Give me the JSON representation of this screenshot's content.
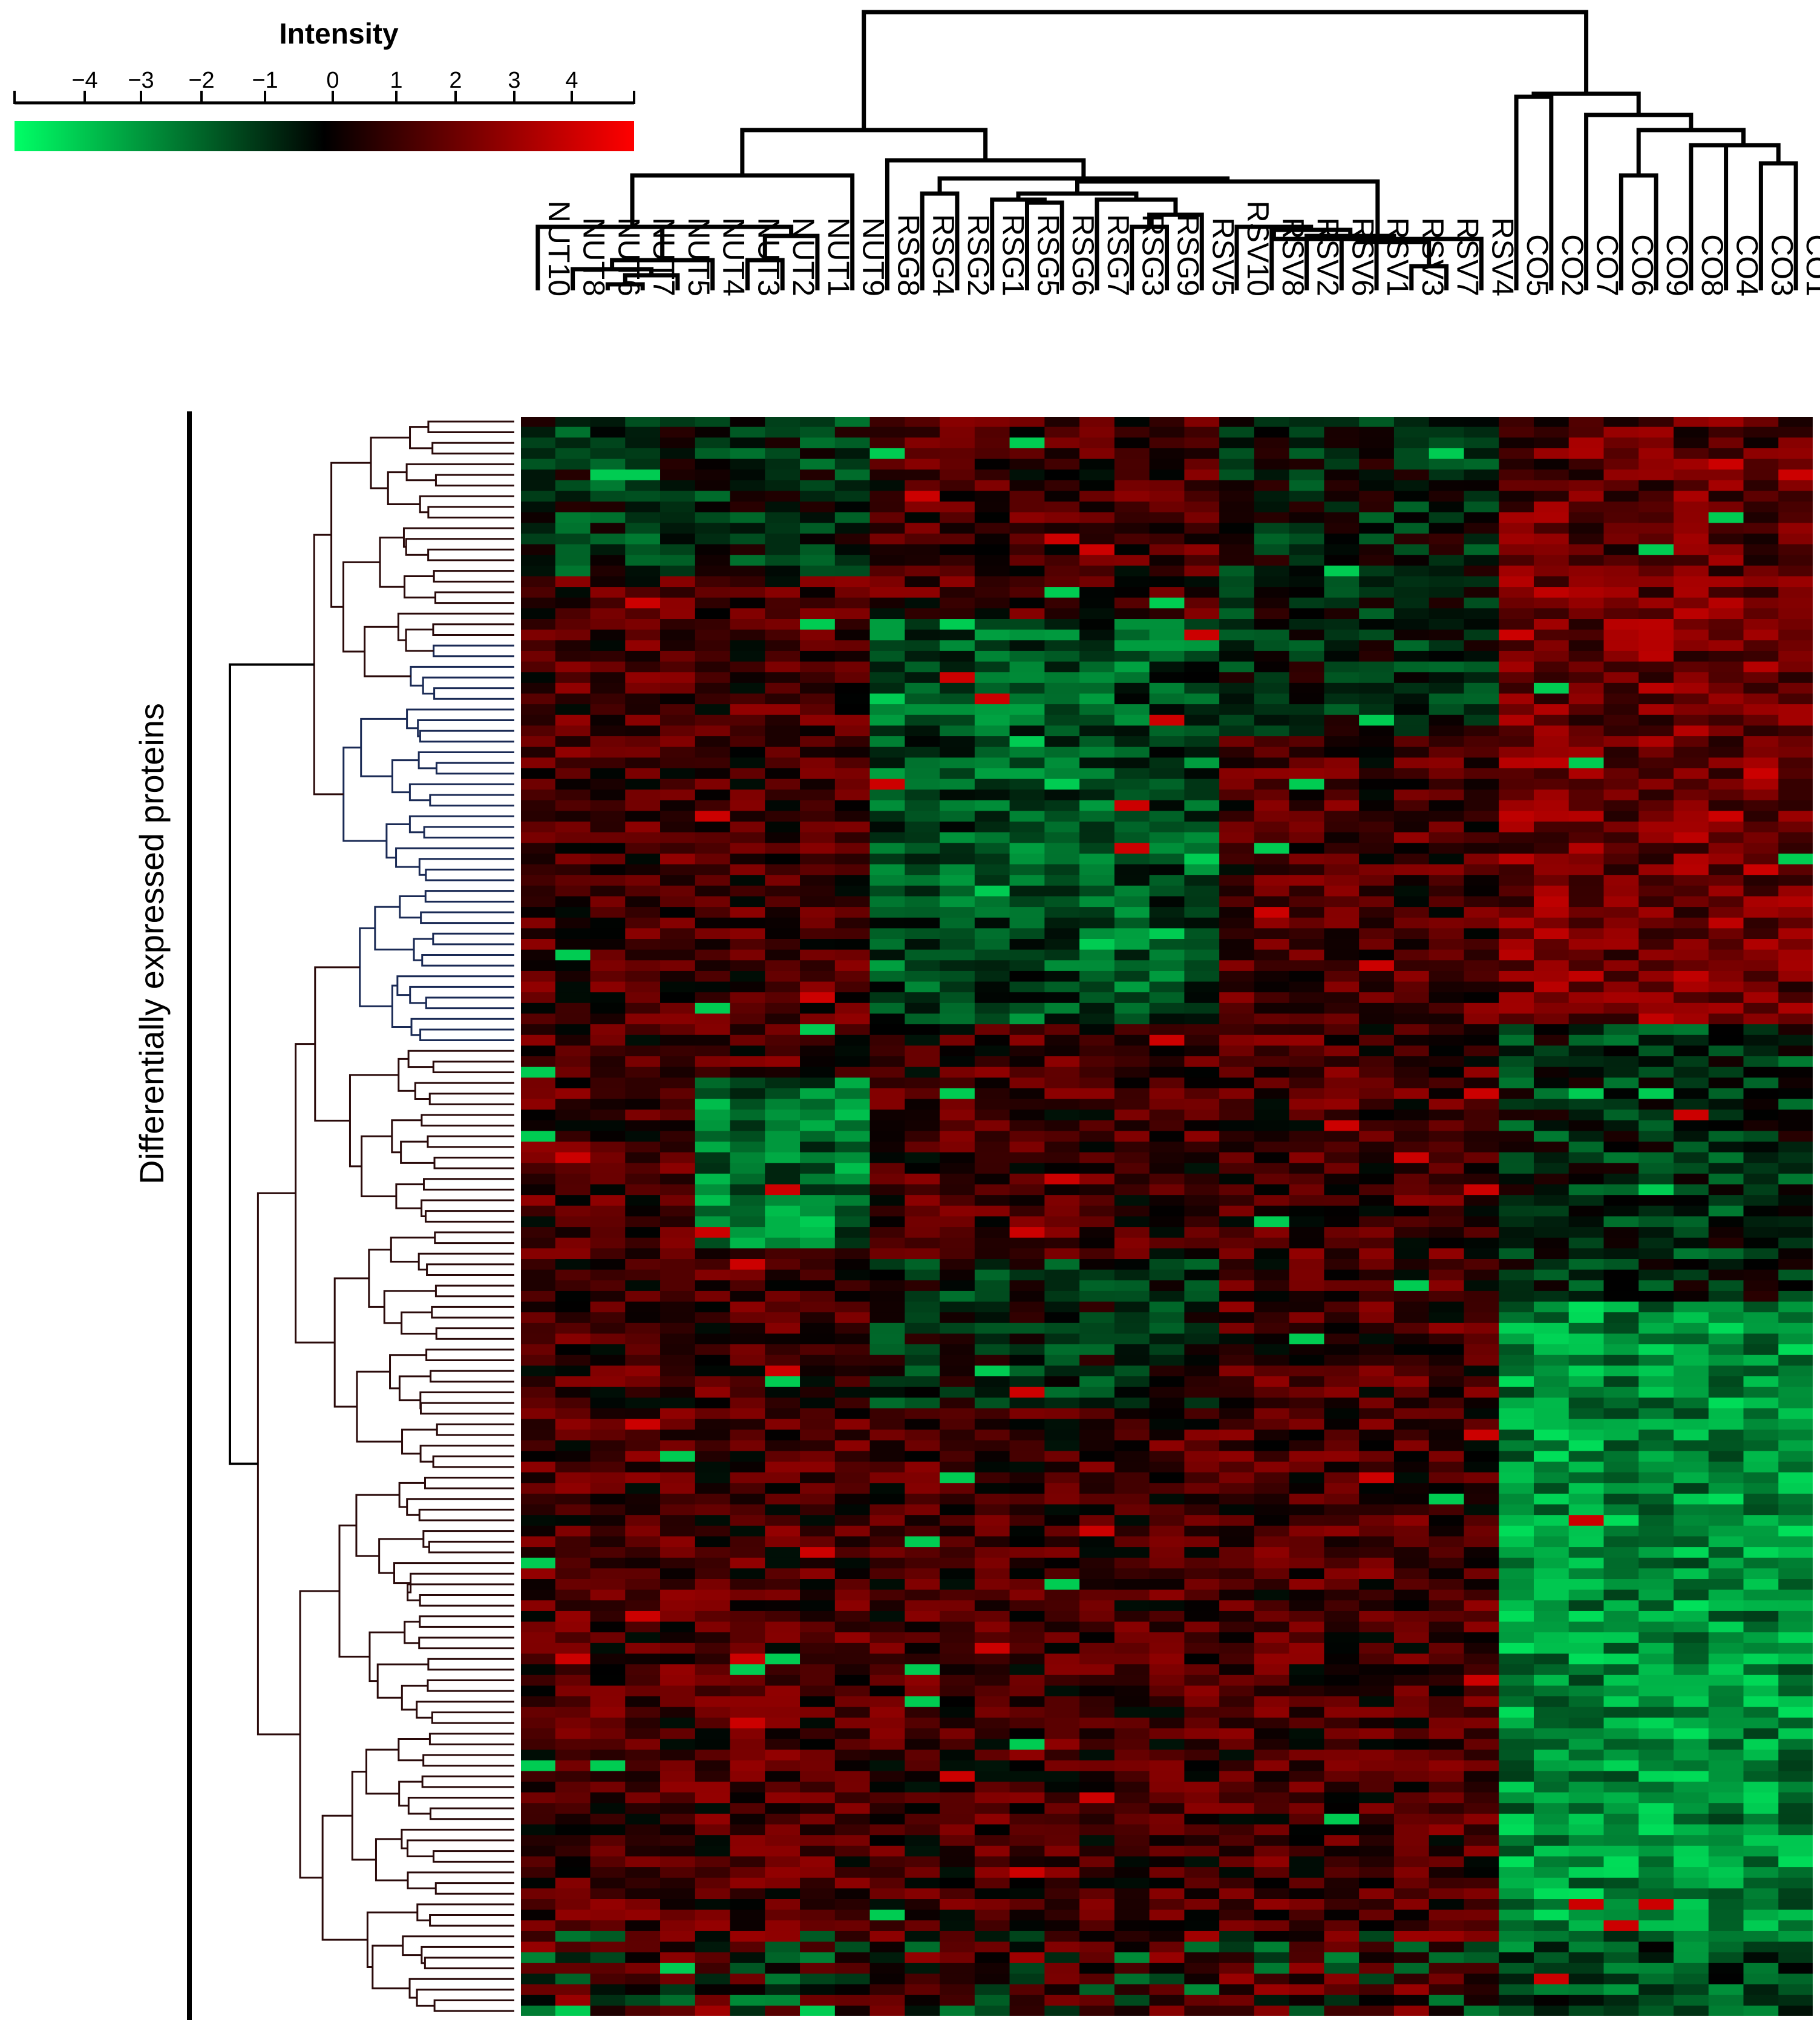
{
  "chart_data": {
    "type": "heatmap",
    "title": "",
    "ylabel": "Differentially expressed proteins",
    "colorbar": {
      "label": "Intensity",
      "ticks": [
        "−4",
        "−3",
        "−2",
        "−1",
        "0",
        "1",
        "2",
        "3",
        "4"
      ],
      "range": [
        -5,
        5
      ],
      "colors": {
        "low": "#00ff66",
        "mid": "#000000",
        "high": "#ff0000"
      }
    },
    "columns": [
      "NUT10",
      "NUT8",
      "NUT6",
      "NUT7",
      "NUT5",
      "NUT4",
      "NUT3",
      "NUT2",
      "NUT1",
      "NUT9",
      "RSG8",
      "RSG4",
      "RSG2",
      "RSG1",
      "RSG5",
      "RSG6",
      "RSG7",
      "RSG3",
      "RSG9",
      "RSV5",
      "RSV10",
      "RSV8",
      "RSV2",
      "RSV6",
      "RSV1",
      "RSV3",
      "RSV7",
      "RSV4",
      "CO5",
      "CO2",
      "CO7",
      "CO6",
      "CO9",
      "CO8",
      "CO4",
      "CO3",
      "CO1"
    ],
    "row_count": 150,
    "dendrograms": {
      "columns": true,
      "rows": true
    },
    "pattern_note": "values are approximate; NUT columns mostly dark red with green cluster in NUT3-NUT1 mid rows; RSG columns green in middle block; CO columns red in upper block and strongly green in lower block"
  }
}
